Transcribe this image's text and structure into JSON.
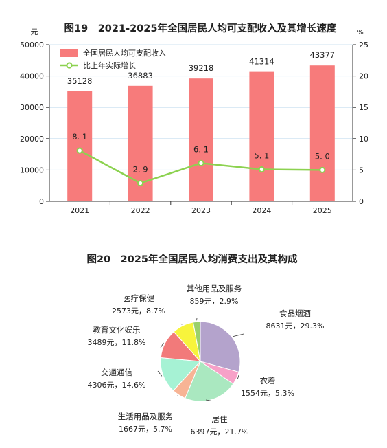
{
  "chart_data": [
    {
      "type": "bar+line",
      "title": "图19　2021-2025年全国居民人均可支配收入及其增长速度",
      "categories": [
        "2021",
        "2022",
        "2023",
        "2024",
        "2025"
      ],
      "series": [
        {
          "name": "全国居民人均可支配收入",
          "type": "bar",
          "axis": "left",
          "values": [
            35128,
            36883,
            39218,
            41314,
            43377
          ],
          "color": "#f77b7b"
        },
        {
          "name": "比上年实际增长",
          "type": "line",
          "axis": "right",
          "values": [
            8.1,
            2.9,
            6.1,
            5.1,
            5.0
          ],
          "color": "#8cd250"
        }
      ],
      "value_labels": [
        "35128",
        "36883",
        "39218",
        "41314",
        "43377"
      ],
      "line_labels": [
        "8. 1",
        "2. 9",
        "6. 1",
        "5. 1",
        "5. 0"
      ],
      "y_left": {
        "unit": "元",
        "ylim": [
          0,
          50000
        ],
        "ticks": [
          "0",
          "10000",
          "20000",
          "30000",
          "40000",
          "50000"
        ]
      },
      "y_right": {
        "unit": "%",
        "ylim": [
          0,
          25
        ],
        "ticks": [
          "0",
          "5",
          "10",
          "15",
          "20",
          "25"
        ]
      },
      "legend": "top-left"
    },
    {
      "type": "pie",
      "title": "图20　2025年全国居民人均消费支出及其构成",
      "slices": [
        {
          "name": "食品烟酒",
          "value": 8631,
          "percent": 29.3,
          "detail": "8631元，29.3%",
          "color": "#b4a3cc"
        },
        {
          "name": "衣着",
          "value": 1554,
          "percent": 5.3,
          "detail": "1554元，5.3%",
          "color": "#f7a1c8"
        },
        {
          "name": "居住",
          "value": 6397,
          "percent": 21.7,
          "detail": "6397元，21.7%",
          "color": "#aae8c0"
        },
        {
          "name": "生活用品及服务",
          "value": 1667,
          "percent": 5.7,
          "detail": "1667元，5.7%",
          "color": "#f7b495"
        },
        {
          "name": "交通通信",
          "value": 4306,
          "percent": 14.6,
          "detail": "4306元，14.6%",
          "color": "#a6f2d4"
        },
        {
          "name": "教育文化娱乐",
          "value": 3489,
          "percent": 11.8,
          "detail": "3489元，11.8%",
          "color": "#f27a7a"
        },
        {
          "name": "医疗保健",
          "value": 2573,
          "percent": 8.7,
          "detail": "2573元，8.7%",
          "color": "#f7f43c"
        },
        {
          "name": "其他用品及服务",
          "value": 859,
          "percent": 2.9,
          "detail": "859元，2.9%",
          "color": "#9ad06a"
        }
      ]
    }
  ]
}
